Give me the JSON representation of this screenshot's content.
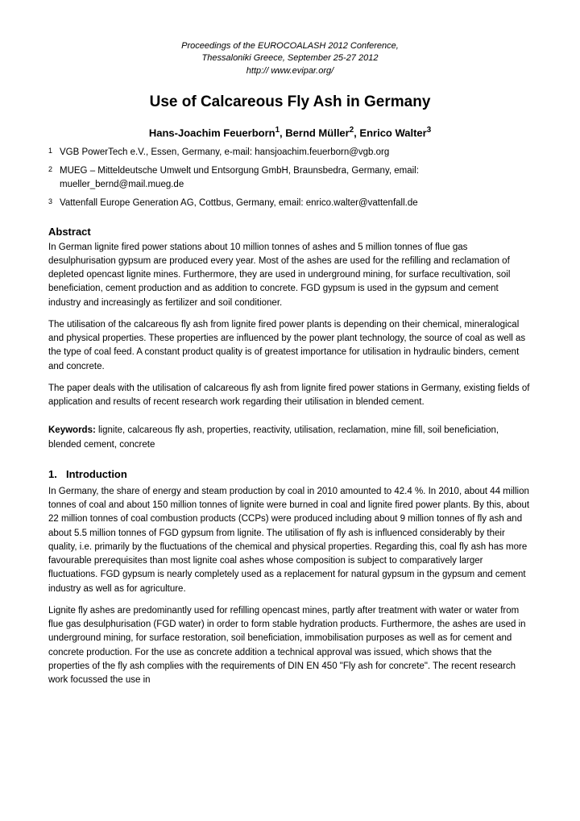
{
  "conference": {
    "line1": "Proceedings of the EUROCOALASH 2012 Conference,",
    "line2": "Thessaloniki Greece, September 25-27 2012",
    "line3": "http:// www.evipar.org/"
  },
  "title": "Use of Calcareous Fly Ash in Germany",
  "authors": {
    "a1_name": "Hans-Joachim Feuerborn",
    "a1_sup": "1",
    "a2_name": "Bernd Müller",
    "a2_sup": "2",
    "a3_name": "Enrico Walter",
    "a3_sup": "3"
  },
  "affiliations": [
    {
      "num": "1",
      "text": "VGB PowerTech e.V., Essen, Germany, e-mail: hansjoachim.feuerborn@vgb.org"
    },
    {
      "num": "2",
      "text": "MUEG – Mitteldeutsche Umwelt und Entsorgung GmbH, Braunsbedra, Germany, email: mueller_bernd@mail.mueg.de"
    },
    {
      "num": "3",
      "text": "Vattenfall Europe Generation AG, Cottbus, Germany, email: enrico.walter@vattenfall.de"
    }
  ],
  "abstract_heading": "Abstract",
  "abstract_paras": [
    "In German lignite fired power stations about 10 million tonnes of ashes and 5 million tonnes of flue gas desulphurisation gypsum are produced every year. Most of the ashes are used for the refilling and reclamation of depleted opencast lignite mines. Furthermore, they are used in underground mining, for surface recultivation, soil beneficiation, cement production and as addition to concrete. FGD gypsum is used in the gypsum and cement industry and increasingly as fertilizer and soil conditioner.",
    "The utilisation of the calcareous fly ash from lignite fired power plants is depending on their chemical, mineralogical and physical properties. These properties are influenced by the power plant technology, the source of coal as well as the type of coal feed. A constant product quality is of greatest importance for utilisation in hydraulic binders, cement and concrete.",
    "The paper deals with the utilisation of calcareous fly ash from lignite fired power stations in Germany, existing fields of application and results of recent research work regarding their utilisation in blended cement."
  ],
  "keywords_label": "Keywords:",
  "keywords_text": " lignite, calcareous fly ash, properties, reactivity, utilisation, reclamation, mine fill, soil beneficiation, blended cement, concrete",
  "intro_heading_num": "1.",
  "intro_heading_text": "Introduction",
  "intro_paras": [
    "In Germany, the share of energy and steam production by coal in 2010 amounted to 42.4 %. In 2010, about 44 million tonnes of coal and about 150 million tonnes of lignite were burned in coal and lignite fired power plants. By this, about 22 million tonnes of coal combustion products (CCPs) were produced including about 9 million tonnes of fly ash and about 5.5 million tonnes of FGD gypsum from lignite. The utilisation of fly ash is influenced considerably by their quality, i.e. primarily by the fluctuations of the chemical and physical properties. Regarding this, coal fly ash has more favourable prerequisites than most lignite coal ashes whose composition is subject to comparatively larger fluctuations. FGD gypsum is nearly completely used as a replacement for natural gypsum in the gypsum and cement industry as well as for agriculture.",
    "Lignite fly ashes are predominantly used for refilling opencast mines, partly after treatment with water or water from flue gas desulphurisation (FGD water) in order to form stable hydration products. Furthermore, the ashes are used in underground mining, for surface restoration, soil beneficiation, immobilisation purposes as well as for cement and concrete production. For the use as concrete addition a technical approval was issued, which shows that the properties of the fly ash complies with the requirements of DIN EN 450 \"Fly ash for concrete\". The recent research work focussed the use in"
  ]
}
